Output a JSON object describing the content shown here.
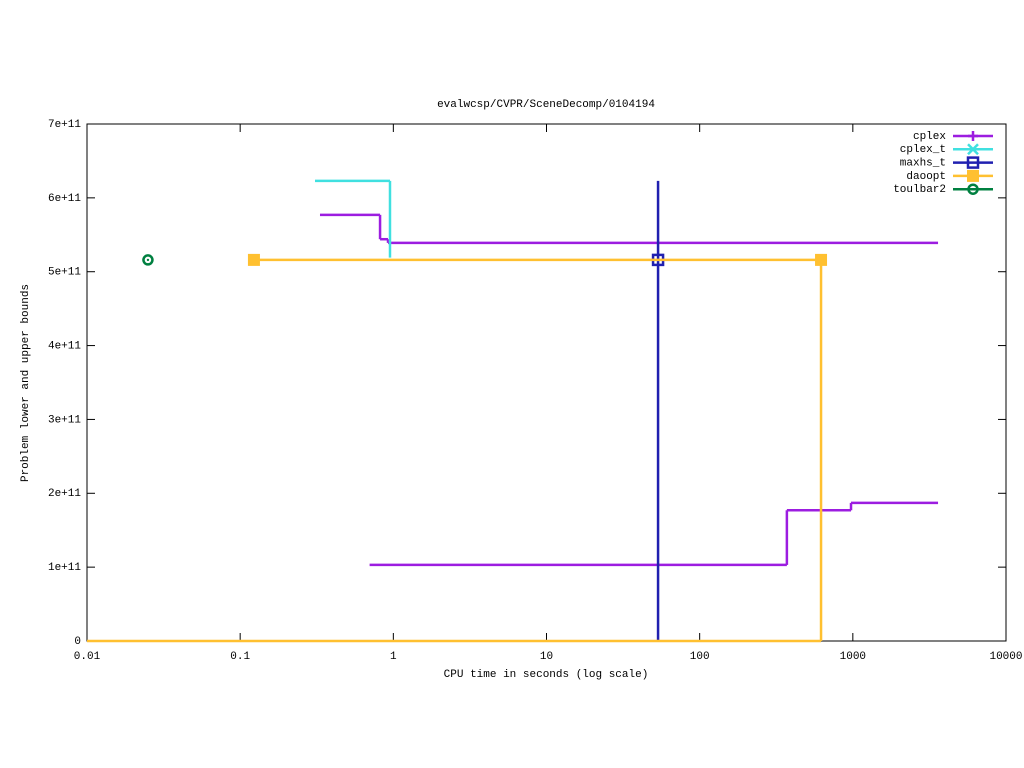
{
  "chart_data": {
    "type": "step",
    "title": "evalwcsp/CVPR/SceneDecomp/0104194",
    "xlabel": "CPU time in seconds (log scale)",
    "ylabel": "Problem lower and upper bounds",
    "xlog": true,
    "xlim": [
      0.01,
      10000
    ],
    "xticks": [
      0.01,
      0.1,
      1,
      10,
      100,
      1000,
      10000
    ],
    "ylim": [
      0,
      700000000000
    ],
    "yticks": [
      0,
      {
        "value": 100000000000,
        "label": "1e+11"
      },
      {
        "value": 200000000000,
        "label": "2e+11"
      },
      {
        "value": 300000000000,
        "label": "3e+11"
      },
      {
        "value": 400000000000,
        "label": "4e+11"
      },
      {
        "value": 500000000000,
        "label": "5e+11"
      },
      {
        "value": 600000000000,
        "label": "6e+11"
      },
      {
        "value": 700000000000,
        "label": "7e+11"
      }
    ],
    "grid": false,
    "legend": "top-right",
    "series": [
      {
        "name": "cplex",
        "color": "#9c1de0",
        "marker": "plus",
        "x": [
          0.332,
          0.819,
          0.923,
          3600,
          null,
          0.7,
          371,
          973,
          3600
        ],
        "values": [
          577000000000,
          544000000000,
          539000000000,
          539000000000,
          null,
          103000000000,
          177000000000,
          187000000000,
          187000000000
        ],
        "points_x": [],
        "points_values": []
      },
      {
        "name": "cplex_t",
        "color": "#40e0e0",
        "marker": "cross",
        "x": [
          0.308,
          0.951
        ],
        "values": [
          623000000000,
          519000000000
        ],
        "points_x": [],
        "points_values": []
      },
      {
        "name": "maxhs_t",
        "color": "#2020b0",
        "marker": "square",
        "x": [
          53.5,
          53.5
        ],
        "values": [
          0,
          623000000000
        ],
        "points_x": [
          53.5
        ],
        "points_values": [
          516000000000
        ]
      },
      {
        "name": "daoopt",
        "color": "#ffc030",
        "marker": "filled-square",
        "x": [
          0.01,
          620,
          null,
          0.123,
          620
        ],
        "values": [
          0,
          516000000000,
          null,
          516000000000,
          516000000000
        ],
        "points_x": [
          0.123,
          620
        ],
        "points_values": [
          516000000000,
          516000000000
        ]
      },
      {
        "name": "toulbar2",
        "color": "#008040",
        "marker": "circle",
        "x": [],
        "values": [],
        "points_x": [
          0.025
        ],
        "points_values": [
          516000000000
        ]
      }
    ]
  }
}
